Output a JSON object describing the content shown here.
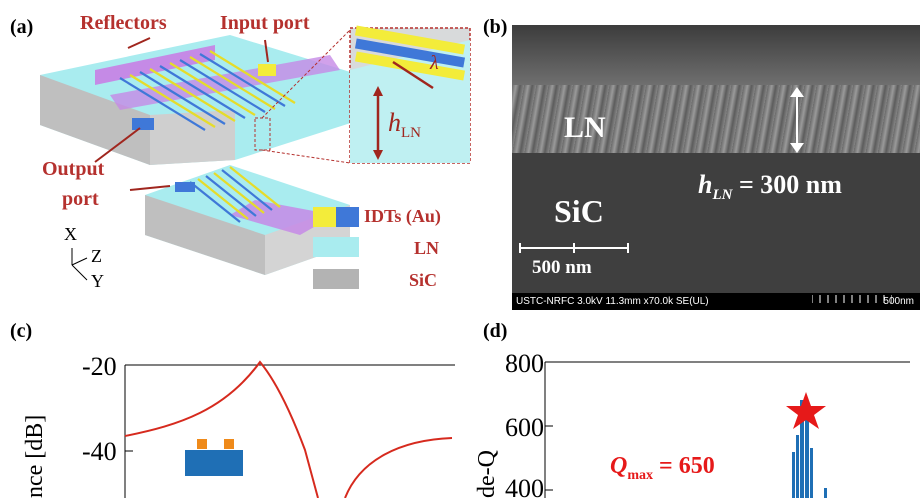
{
  "panels": {
    "a": "(a)",
    "b": "(b)",
    "c": "(c)",
    "d": "(d)"
  },
  "panel_a": {
    "reflectors": "Reflectors",
    "input_port": "Input port",
    "output_port_1": "Output",
    "output_port_2": "port",
    "lambda": "λ",
    "h_ln_main": "h",
    "h_ln_sub": "LN",
    "axis_x": "X",
    "axis_z": "Z",
    "axis_y": "Y",
    "legend": [
      {
        "label": "IDTs (Au)",
        "colors": [
          "#f3ec3a",
          "#3f78d8"
        ]
      },
      {
        "label": "LN",
        "colors": [
          "#a9ecef"
        ]
      },
      {
        "label": "SiC",
        "colors": [
          "#b3b3b3"
        ]
      }
    ]
  },
  "panel_b": {
    "ln": "LN",
    "sic": "SiC",
    "thickness_main": "h",
    "thickness_sub": "LN",
    "thickness_value": " = 300 nm",
    "scalebar": "500 nm",
    "info": "USTC-NRFC 3.0kV 11.3mm x70.0k SE(UL)",
    "info_scale": "500nm"
  },
  "panel_c": {
    "ylabel": "nce [dB]",
    "ticks": [
      "-20",
      "-40"
    ]
  },
  "panel_d": {
    "ylabel": "de-Q",
    "ticks": [
      "800",
      "600",
      "400"
    ],
    "qmax_main": "Q",
    "qmax_sub": "max",
    "qmax_value": " = 650"
  },
  "colors": {
    "accent_red": "#b5312e",
    "curve": "#d62a1e",
    "bar": "#1f6fb5",
    "star": "#e61919"
  }
}
